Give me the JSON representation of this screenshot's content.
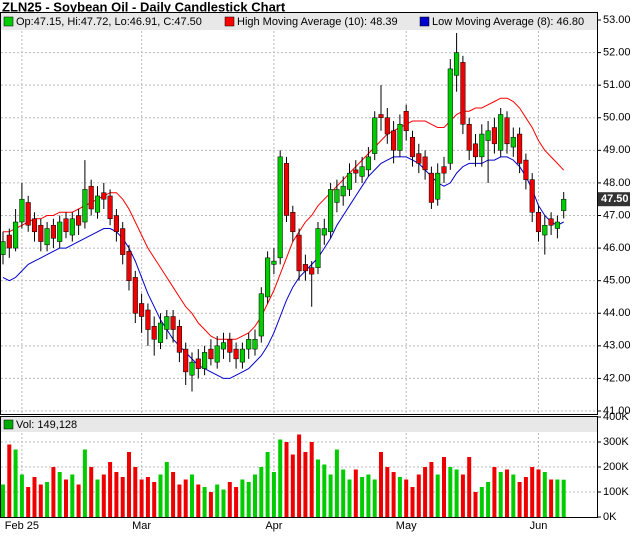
{
  "chart_data": [
    {
      "type": "candlestick",
      "title": "ZLN25 - Soybean Oil - Daily Candlestick Chart",
      "ohlc_label": "Op:47.15, Hi:47.72, Lo:46.91, C:47.50",
      "up_color": "#00cc00",
      "down_color": "#ee0000",
      "categories": [
        null,
        null,
        null,
        "Feb 25",
        null,
        null,
        null,
        null,
        null,
        null,
        null,
        null,
        null,
        null,
        null,
        null,
        null,
        null,
        null,
        null,
        null,
        null,
        "Mar",
        null,
        null,
        null,
        null,
        null,
        null,
        null,
        null,
        null,
        null,
        null,
        null,
        null,
        null,
        null,
        null,
        null,
        null,
        null,
        null,
        "Apr",
        null,
        null,
        null,
        null,
        null,
        null,
        null,
        null,
        null,
        null,
        null,
        null,
        null,
        null,
        null,
        null,
        null,
        null,
        null,
        null,
        "May",
        null,
        null,
        null,
        null,
        null,
        null,
        null,
        null,
        null,
        null,
        null,
        null,
        null,
        null,
        null,
        null,
        null,
        null,
        null,
        null,
        "Jun",
        null,
        null,
        null,
        null
      ],
      "open": [
        45.8,
        46.4,
        46.0,
        46.8,
        47.4,
        46.9,
        46.7,
        46.1,
        46.7,
        46.2,
        46.9,
        46.4,
        47.0,
        46.8,
        47.9,
        47.1,
        47.7,
        47.6,
        47.0,
        46.6,
        45.9,
        45.1,
        44.3,
        44.1,
        43.6,
        43.1,
        43.5,
        43.9,
        43.6,
        42.9,
        42.1,
        42.6,
        42.3,
        42.9,
        42.5,
        42.9,
        43.2,
        42.9,
        42.5,
        42.9,
        42.9,
        43.3,
        44.5,
        45.5,
        45.7,
        48.6,
        47.1,
        46.4,
        45.5,
        45.4,
        45.4,
        46.4,
        46.5,
        47.4,
        47.6,
        47.8,
        48.4,
        48.2,
        48.4,
        48.9,
        50.1,
        50.0,
        49.6,
        49.0,
        50.2,
        49.4,
        48.9,
        48.8,
        48.3,
        47.5,
        48.5,
        48.6,
        51.3,
        51.7,
        49.8,
        49.2,
        48.8,
        49.3,
        49.7,
        49.0,
        50.0,
        49.1,
        49.5,
        48.7,
        48.1,
        47.1,
        46.4,
        46.9,
        46.6,
        47.15
      ],
      "high": [
        46.5,
        46.6,
        47.2,
        48.0,
        47.6,
        47.1,
        46.9,
        46.8,
        46.9,
        47.0,
        47.1,
        47.1,
        47.2,
        48.7,
        48.1,
        47.9,
        48.0,
        47.8,
        47.2,
        46.8,
        46.1,
        45.3,
        44.6,
        44.3,
        43.9,
        44.0,
        44.1,
        44.1,
        43.8,
        43.1,
        42.8,
        42.9,
        43.0,
        43.2,
        43.3,
        43.4,
        43.4,
        43.1,
        43.1,
        43.4,
        43.5,
        44.8,
        45.9,
        46.0,
        49.0,
        48.8,
        47.3,
        46.6,
        45.8,
        45.6,
        46.8,
        46.9,
        48.0,
        48.1,
        48.2,
        48.6,
        48.7,
        48.8,
        49.1,
        50.2,
        51.0,
        50.3,
        49.9,
        50.1,
        50.4,
        49.6,
        49.2,
        49.0,
        48.5,
        48.6,
        48.8,
        51.8,
        52.6,
        51.9,
        50.0,
        49.5,
        49.8,
        49.9,
        50.0,
        50.3,
        50.2,
        49.7,
        49.7,
        48.9,
        48.3,
        47.3,
        47.0,
        47.1,
        47.0,
        47.72
      ],
      "low": [
        45.5,
        45.7,
        45.9,
        46.6,
        46.5,
        46.2,
        45.9,
        45.9,
        46.0,
        46.0,
        46.3,
        46.2,
        46.4,
        46.6,
        47.0,
        46.9,
        47.2,
        46.7,
        46.2,
        45.5,
        44.7,
        43.7,
        43.4,
        43.0,
        42.7,
        42.9,
        43.2,
        43.1,
        42.5,
        41.8,
        41.6,
        42.0,
        42.1,
        42.4,
        42.3,
        42.6,
        42.5,
        42.3,
        42.3,
        42.6,
        42.7,
        43.1,
        44.3,
        45.2,
        45.5,
        46.8,
        46.2,
        45.0,
        45.0,
        44.2,
        45.2,
        46.1,
        46.3,
        47.1,
        47.3,
        47.6,
        48.0,
        48.0,
        48.2,
        48.7,
        49.6,
        49.2,
        48.6,
        48.8,
        49.3,
        48.5,
        48.3,
        48.1,
        47.2,
        47.3,
        48.0,
        48.4,
        50.8,
        49.5,
        48.7,
        48.5,
        48.5,
        48.0,
        48.9,
        48.8,
        48.9,
        48.8,
        48.3,
        47.8,
        46.8,
        46.2,
        45.8,
        46.4,
        46.3,
        46.91
      ],
      "close": [
        46.2,
        46.0,
        46.8,
        47.5,
        46.7,
        46.5,
        46.2,
        46.6,
        46.3,
        46.8,
        46.5,
        46.9,
        46.7,
        47.8,
        47.2,
        47.6,
        47.5,
        46.9,
        46.5,
        45.8,
        45.0,
        44.0,
        43.9,
        43.5,
        43.2,
        43.7,
        43.9,
        43.5,
        42.8,
        42.2,
        42.5,
        42.3,
        42.8,
        42.6,
        43.0,
        43.1,
        42.8,
        42.6,
        42.9,
        43.2,
        43.2,
        44.6,
        45.7,
        45.6,
        48.8,
        47.0,
        46.5,
        45.3,
        45.3,
        45.2,
        46.6,
        46.6,
        47.8,
        47.8,
        47.9,
        48.3,
        48.3,
        48.5,
        48.8,
        50.0,
        50.0,
        49.5,
        49.0,
        49.8,
        49.6,
        48.8,
        48.6,
        48.4,
        47.4,
        48.3,
        48.3,
        51.5,
        52.0,
        49.8,
        49.0,
        48.8,
        49.5,
        49.6,
        49.2,
        50.1,
        49.2,
        49.4,
        48.6,
        48.1,
        47.1,
        46.5,
        46.7,
        46.7,
        46.8,
        47.5
      ],
      "series": [
        {
          "name": "High Moving Average (10): 48.39",
          "color": "#ff0000",
          "values": [
            46.5,
            46.5,
            46.6,
            46.7,
            46.8,
            46.9,
            46.9,
            47.0,
            47.0,
            47.1,
            47.1,
            47.1,
            47.2,
            47.3,
            47.4,
            47.5,
            47.6,
            47.7,
            47.7,
            47.5,
            47.2,
            46.8,
            46.4,
            46.0,
            45.7,
            45.4,
            45.1,
            44.8,
            44.5,
            44.2,
            44.0,
            43.7,
            43.5,
            43.3,
            43.2,
            43.2,
            43.2,
            43.2,
            43.3,
            43.4,
            43.6,
            43.9,
            44.3,
            44.7,
            45.2,
            45.7,
            46.2,
            46.5,
            46.8,
            47.0,
            47.3,
            47.5,
            47.7,
            47.9,
            48.1,
            48.3,
            48.5,
            48.7,
            48.9,
            49.1,
            49.3,
            49.5,
            49.6,
            49.7,
            49.8,
            49.9,
            49.9,
            49.9,
            49.8,
            49.7,
            49.7,
            49.9,
            50.1,
            50.2,
            50.2,
            50.3,
            50.3,
            50.4,
            50.5,
            50.6,
            50.6,
            50.5,
            50.3,
            50.0,
            49.7,
            49.3,
            49.0,
            48.8,
            48.6,
            48.39
          ]
        },
        {
          "name": "Low Moving Average (8): 46.80",
          "color": "#0000cc",
          "values": [
            45.1,
            45.0,
            45.1,
            45.3,
            45.5,
            45.6,
            45.7,
            45.8,
            45.9,
            46.0,
            46.0,
            46.1,
            46.2,
            46.3,
            46.4,
            46.5,
            46.6,
            46.6,
            46.5,
            46.3,
            46.0,
            45.6,
            45.1,
            44.6,
            44.2,
            43.8,
            43.5,
            43.2,
            43.0,
            42.8,
            42.6,
            42.4,
            42.3,
            42.2,
            42.1,
            42.0,
            42.0,
            42.1,
            42.2,
            42.3,
            42.5,
            42.7,
            43.0,
            43.4,
            43.9,
            44.4,
            44.8,
            45.1,
            45.3,
            45.5,
            45.7,
            46.0,
            46.3,
            46.7,
            47.0,
            47.3,
            47.6,
            47.9,
            48.2,
            48.4,
            48.6,
            48.7,
            48.8,
            48.8,
            48.8,
            48.7,
            48.6,
            48.4,
            48.2,
            48.0,
            47.9,
            48.0,
            48.3,
            48.5,
            48.6,
            48.6,
            48.6,
            48.7,
            48.7,
            48.8,
            48.8,
            48.7,
            48.5,
            48.2,
            47.8,
            47.3,
            47.0,
            46.8,
            46.7,
            46.8
          ]
        }
      ],
      "ylim": [
        41,
        53
      ],
      "yticks": [
        {
          "value": 41,
          "label": "41.00"
        },
        {
          "value": 42,
          "label": "42.00"
        },
        {
          "value": 43,
          "label": "43.00"
        },
        {
          "value": 44,
          "label": "44.00"
        },
        {
          "value": 45,
          "label": "45.00"
        },
        {
          "value": 46,
          "label": "46.00"
        },
        {
          "value": 47,
          "label": "47.00"
        },
        {
          "value": 48,
          "label": "48.00"
        },
        {
          "value": 49,
          "label": "49.00"
        },
        {
          "value": 50,
          "label": "50.00"
        },
        {
          "value": 51,
          "label": "51.00"
        },
        {
          "value": 52,
          "label": "52.00"
        },
        {
          "value": 53,
          "label": "53.00"
        }
      ],
      "last_price": {
        "value": 47.5,
        "label": "47.50"
      },
      "grid": true
    },
    {
      "type": "bar",
      "title": "Vol: 149,128",
      "color": "#00aa00",
      "values": [
        130000,
        290000,
        270000,
        170000,
        120000,
        160000,
        130000,
        140000,
        200000,
        180000,
        150000,
        170000,
        130000,
        270000,
        200000,
        150000,
        170000,
        220000,
        180000,
        160000,
        260000,
        200000,
        150000,
        160000,
        140000,
        170000,
        220000,
        180000,
        130000,
        150000,
        170000,
        130000,
        120000,
        100000,
        130000,
        110000,
        140000,
        120000,
        150000,
        140000,
        170000,
        200000,
        260000,
        180000,
        310000,
        300000,
        250000,
        330000,
        260000,
        300000,
        230000,
        210000,
        170000,
        270000,
        190000,
        150000,
        190000,
        160000,
        170000,
        150000,
        260000,
        200000,
        180000,
        160000,
        150000,
        120000,
        170000,
        200000,
        220000,
        170000,
        240000,
        200000,
        190000,
        170000,
        240000,
        100000,
        120000,
        140000,
        200000,
        180000,
        190000,
        170000,
        140000,
        160000,
        200000,
        190000,
        180000,
        150000,
        150000,
        149128
      ],
      "ylim": [
        0,
        400000
      ],
      "yticks": [
        {
          "value": 0,
          "label": "0K"
        },
        {
          "value": 100000,
          "label": "100K"
        },
        {
          "value": 200000,
          "label": "200K"
        },
        {
          "value": 300000,
          "label": "300K"
        },
        {
          "value": 400000,
          "label": "400K"
        }
      ]
    }
  ]
}
